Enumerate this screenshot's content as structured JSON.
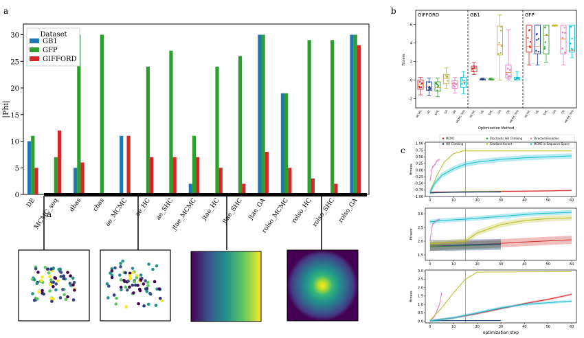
{
  "panel_labels": {
    "a": "a",
    "a_inset": "a",
    "b": "b",
    "c": "c"
  },
  "colors": {
    "GB1": "#1f77b4",
    "GFP": "#2ca02c",
    "GIFFORD": "#d62728",
    "MCMC": "#d62728",
    "Stochastic Hill Climbing": "#2ca02c",
    "Directed Evolution": "#e377c2",
    "Hill Climbing": "#1f3c88",
    "Gradient Ascent": "#bcbd22",
    "MCMC in Sequence Space": "#17becf"
  },
  "chart_data": [
    {
      "id": "a",
      "type": "bar",
      "title": "",
      "ylabel": "|Phi|",
      "xlabel": "",
      "ylim": [
        0,
        32
      ],
      "yticks": [
        0,
        5,
        10,
        15,
        20,
        25,
        30
      ],
      "legend": {
        "title": "Dataset",
        "placement": "top-left",
        "entries": [
          "GB1",
          "GFP",
          "GIFFORD"
        ]
      },
      "categories": [
        "DE",
        "MCMC_seq",
        "dbas",
        "cbas",
        "ae_MCMC",
        "ae_HC",
        "ae_SHC",
        "jtae_MCMC",
        "jtae_HC",
        "jtae_SHC",
        "jtae_GA",
        "rolso_MCMC",
        "rolso_HC",
        "rolso_SHC",
        "rolso_GA"
      ],
      "series": [
        {
          "name": "GB1",
          "values": [
            10,
            0,
            5,
            0,
            11,
            0,
            0,
            2,
            0,
            0,
            30,
            19,
            0,
            0,
            30
          ]
        },
        {
          "name": "GFP",
          "values": [
            11,
            7,
            30,
            30,
            0,
            24,
            27,
            11,
            24,
            26,
            30,
            19,
            29,
            29,
            30
          ]
        },
        {
          "name": "GIFFORD",
          "values": [
            5,
            12,
            6,
            0,
            11,
            7,
            7,
            7,
            5,
            2,
            8,
            5,
            3,
            2,
            28
          ]
        }
      ]
    },
    {
      "id": "b",
      "type": "box",
      "title": "",
      "ylabel": "Fitness",
      "xlabel": "Optimization Method",
      "ylim": [
        -3,
        7.5
      ],
      "yticks": [
        -2,
        0,
        2,
        4,
        6
      ],
      "groups": [
        "GIFFORD",
        "GB1",
        "GFP"
      ],
      "methods": [
        "MCMC",
        "HC",
        "SHC",
        "GA",
        "DE",
        "MCMC Seq"
      ],
      "method_colors": [
        "#d62728",
        "#1f3c88",
        "#2ca02c",
        "#bcbd22",
        "#e377c2",
        "#17becf"
      ],
      "boxes": [
        {
          "group": "GIFFORD",
          "method": "MCMC",
          "q1": -1.0,
          "median": -0.5,
          "q3": 0.0,
          "min": -1.6,
          "max": 0.3
        },
        {
          "group": "GIFFORD",
          "method": "HC",
          "q1": -1.1,
          "median": -0.7,
          "q3": -0.2,
          "min": -1.7,
          "max": 0.2
        },
        {
          "group": "GIFFORD",
          "method": "SHC",
          "q1": -1.2,
          "median": -0.8,
          "q3": -0.2,
          "min": -1.8,
          "max": 0.2
        },
        {
          "group": "GIFFORD",
          "method": "GA",
          "q1": -0.4,
          "median": 0.2,
          "q3": 0.6,
          "min": -0.9,
          "max": 1.3
        },
        {
          "group": "GIFFORD",
          "method": "DE",
          "q1": -0.9,
          "median": -0.4,
          "q3": -0.1,
          "min": -1.4,
          "max": 0.3
        },
        {
          "group": "GIFFORD",
          "method": "MCMC Seq",
          "q1": -0.8,
          "median": -0.2,
          "q3": 0.3,
          "min": -1.5,
          "max": 0.9
        },
        {
          "group": "GB1",
          "method": "MCMC",
          "q1": 0.9,
          "median": 1.2,
          "q3": 1.5,
          "min": 0.6,
          "max": 1.9
        },
        {
          "group": "GB1",
          "method": "HC",
          "q1": 0.0,
          "median": 0.05,
          "q3": 0.1,
          "min": 0.0,
          "max": 0.2
        },
        {
          "group": "GB1",
          "method": "SHC",
          "q1": 0.0,
          "median": 0.05,
          "q3": 0.1,
          "min": 0.0,
          "max": 0.2
        },
        {
          "group": "GB1",
          "method": "GA",
          "q1": 2.7,
          "median": 3.8,
          "q3": 5.8,
          "min": 0.0,
          "max": 7.0
        },
        {
          "group": "GB1",
          "method": "DE",
          "q1": 0.2,
          "median": 0.8,
          "q3": 1.6,
          "min": 0.0,
          "max": 5.4
        },
        {
          "group": "GB1",
          "method": "MCMC Seq",
          "q1": 0.0,
          "median": 0.1,
          "q3": 0.3,
          "min": 0.0,
          "max": 0.9
        },
        {
          "group": "GFP",
          "method": "MCMC",
          "q1": 3.0,
          "median": 3.6,
          "q3": 5.9,
          "min": 1.6,
          "max": 5.9
        },
        {
          "group": "GFP",
          "method": "HC",
          "q1": 2.8,
          "median": 3.6,
          "q3": 5.9,
          "min": 1.6,
          "max": 5.9
        },
        {
          "group": "GFP",
          "method": "SHC",
          "q1": 2.8,
          "median": 4.8,
          "q3": 5.9,
          "min": 1.9,
          "max": 5.9
        },
        {
          "group": "GFP",
          "method": "GA",
          "q1": 5.8,
          "median": 5.9,
          "q3": 5.9,
          "min": 5.8,
          "max": 5.9
        },
        {
          "group": "GFP",
          "method": "DE",
          "q1": 2.8,
          "median": 4.4,
          "q3": 5.9,
          "min": 1.6,
          "max": 5.9
        },
        {
          "group": "GFP",
          "method": "MCMC Seq",
          "q1": 3.0,
          "median": 3.2,
          "q3": 5.9,
          "min": 2.4,
          "max": 5.9
        }
      ]
    },
    {
      "id": "c",
      "type": "line",
      "xlabel": "optimization step",
      "ylabel": "fitness",
      "xlim": [
        -2,
        62
      ],
      "vline_x": 15,
      "legend": {
        "placement": "top",
        "entries": [
          "MCMC",
          "Stochastic Hill Climbing",
          "Directed Evolution",
          "Hill Climbing",
          "Gradient Ascent",
          "MCMC in Sequence Space"
        ]
      },
      "subplots": [
        {
          "ylim": [
            -1.0,
            1.05
          ],
          "yticks": [
            -1.0,
            -0.75,
            -0.5,
            -0.25,
            0.0,
            0.25,
            0.5,
            0.75,
            1.0
          ],
          "series": [
            {
              "name": "MCMC",
              "band": 0.03,
              "points": [
                [
                  0,
                  -0.84
                ],
                [
                  10,
                  -0.83
                ],
                [
                  20,
                  -0.82
                ],
                [
                  30,
                  -0.81
                ],
                [
                  40,
                  -0.8
                ],
                [
                  50,
                  -0.79
                ],
                [
                  60,
                  -0.77
                ]
              ]
            },
            {
              "name": "Stochastic Hill Climbing",
              "band": 0.02,
              "points": [
                [
                  0,
                  -0.87
                ],
                [
                  10,
                  -0.83
                ],
                [
                  20,
                  -0.82
                ],
                [
                  30,
                  -0.82
                ]
              ]
            },
            {
              "name": "Directed Evolution",
              "band": 0.05,
              "points": [
                [
                  0,
                  -0.4
                ],
                [
                  1,
                  0.1
                ],
                [
                  2,
                  0.2
                ],
                [
                  3,
                  0.35
                ],
                [
                  4,
                  0.4
                ]
              ]
            },
            {
              "name": "Hill Climbing",
              "band": 0.02,
              "points": [
                [
                  0,
                  -0.86
                ],
                [
                  10,
                  -0.84
                ],
                [
                  20,
                  -0.83
                ],
                [
                  30,
                  -0.83
                ]
              ]
            },
            {
              "name": "Gradient Ascent",
              "band": 0.02,
              "points": [
                [
                  0,
                  -0.8
                ],
                [
                  3,
                  -0.2
                ],
                [
                  6,
                  0.3
                ],
                [
                  10,
                  0.62
                ],
                [
                  14,
                  0.72
                ],
                [
                  20,
                  0.72
                ],
                [
                  30,
                  0.72
                ],
                [
                  40,
                  0.72
                ],
                [
                  50,
                  0.72
                ],
                [
                  60,
                  0.72
                ]
              ]
            },
            {
              "name": "MCMC in Sequence Space",
              "band": 0.1,
              "points": [
                [
                  0,
                  -0.85
                ],
                [
                  2,
                  -0.5
                ],
                [
                  5,
                  -0.2
                ],
                [
                  10,
                  0.05
                ],
                [
                  15,
                  0.22
                ],
                [
                  20,
                  0.3
                ],
                [
                  30,
                  0.4
                ],
                [
                  40,
                  0.46
                ],
                [
                  50,
                  0.5
                ],
                [
                  60,
                  0.53
                ]
              ]
            }
          ]
        },
        {
          "ylim": [
            1.3,
            3.2
          ],
          "yticks": [
            1.5,
            2.0,
            2.5,
            3.0
          ],
          "series": [
            {
              "name": "MCMC",
              "band": 0.15,
              "points": [
                [
                  0,
                  1.8
                ],
                [
                  10,
                  1.85
                ],
                [
                  20,
                  1.88
                ],
                [
                  30,
                  1.92
                ],
                [
                  40,
                  1.97
                ],
                [
                  50,
                  2.01
                ],
                [
                  60,
                  2.05
                ]
              ]
            },
            {
              "name": "Stochastic Hill Climbing",
              "band": 0.15,
              "points": [
                [
                  0,
                  1.8
                ],
                [
                  10,
                  1.82
                ],
                [
                  20,
                  1.85
                ],
                [
                  30,
                  1.88
                ]
              ]
            },
            {
              "name": "Directed Evolution",
              "band": 0.05,
              "points": [
                [
                  0,
                  2.0
                ],
                [
                  1,
                  2.6
                ],
                [
                  2,
                  2.7
                ],
                [
                  3,
                  2.75
                ],
                [
                  4,
                  2.8
                ]
              ]
            },
            {
              "name": "Hill Climbing",
              "band": 0.2,
              "points": [
                [
                  0,
                  1.85
                ],
                [
                  10,
                  1.85
                ],
                [
                  20,
                  1.87
                ],
                [
                  30,
                  1.88
                ]
              ]
            },
            {
              "name": "Gradient Ascent",
              "band": 0.1,
              "points": [
                [
                  0,
                  1.9
                ],
                [
                  15,
                  2.0
                ],
                [
                  20,
                  2.3
                ],
                [
                  30,
                  2.6
                ],
                [
                  40,
                  2.75
                ],
                [
                  50,
                  2.82
                ],
                [
                  60,
                  2.85
                ]
              ]
            },
            {
              "name": "MCMC in Sequence Space",
              "band": 0.08,
              "points": [
                [
                  0,
                  2.7
                ],
                [
                  5,
                  2.75
                ],
                [
                  15,
                  2.8
                ],
                [
                  30,
                  2.9
                ],
                [
                  45,
                  3.0
                ],
                [
                  60,
                  3.05
                ]
              ]
            }
          ]
        },
        {
          "ylim": [
            -0.1,
            3.05
          ],
          "yticks": [
            0.0,
            0.5,
            1.0,
            1.5,
            2.0,
            2.5,
            3.0
          ],
          "series": [
            {
              "name": "MCMC",
              "band": 0.06,
              "points": [
                [
                  0,
                  0.02
                ],
                [
                  10,
                  0.2
                ],
                [
                  20,
                  0.45
                ],
                [
                  30,
                  0.75
                ],
                [
                  40,
                  1.05
                ],
                [
                  50,
                  1.3
                ],
                [
                  60,
                  1.6
                ]
              ]
            },
            {
              "name": "Stochastic Hill Climbing",
              "band": 0.01,
              "points": [
                [
                  0,
                  0.03
                ],
                [
                  10,
                  0.04
                ],
                [
                  20,
                  0.04
                ],
                [
                  30,
                  0.04
                ]
              ]
            },
            {
              "name": "Directed Evolution",
              "band": 0.05,
              "points": [
                [
                  0,
                  0.02
                ],
                [
                  2,
                  0.3
                ],
                [
                  4,
                  1.0
                ],
                [
                  5,
                  1.7
                ]
              ]
            },
            {
              "name": "Hill Climbing",
              "band": 0.01,
              "points": [
                [
                  0,
                  0.03
                ],
                [
                  10,
                  0.04
                ],
                [
                  20,
                  0.04
                ],
                [
                  30,
                  0.04
                ]
              ]
            },
            {
              "name": "Gradient Ascent",
              "band": 0.01,
              "points": [
                [
                  0,
                  0.05
                ],
                [
                  5,
                  0.8
                ],
                [
                  10,
                  1.7
                ],
                [
                  15,
                  2.5
                ],
                [
                  20,
                  2.92
                ],
                [
                  30,
                  2.93
                ],
                [
                  40,
                  2.94
                ],
                [
                  50,
                  2.95
                ],
                [
                  60,
                  2.96
                ]
              ]
            },
            {
              "name": "MCMC in Sequence Space",
              "band": 0.08,
              "points": [
                [
                  0,
                  0.02
                ],
                [
                  10,
                  0.2
                ],
                [
                  20,
                  0.5
                ],
                [
                  30,
                  0.8
                ],
                [
                  40,
                  1.0
                ],
                [
                  50,
                  1.1
                ],
                [
                  60,
                  1.2
                ]
              ]
            }
          ]
        }
      ]
    }
  ]
}
